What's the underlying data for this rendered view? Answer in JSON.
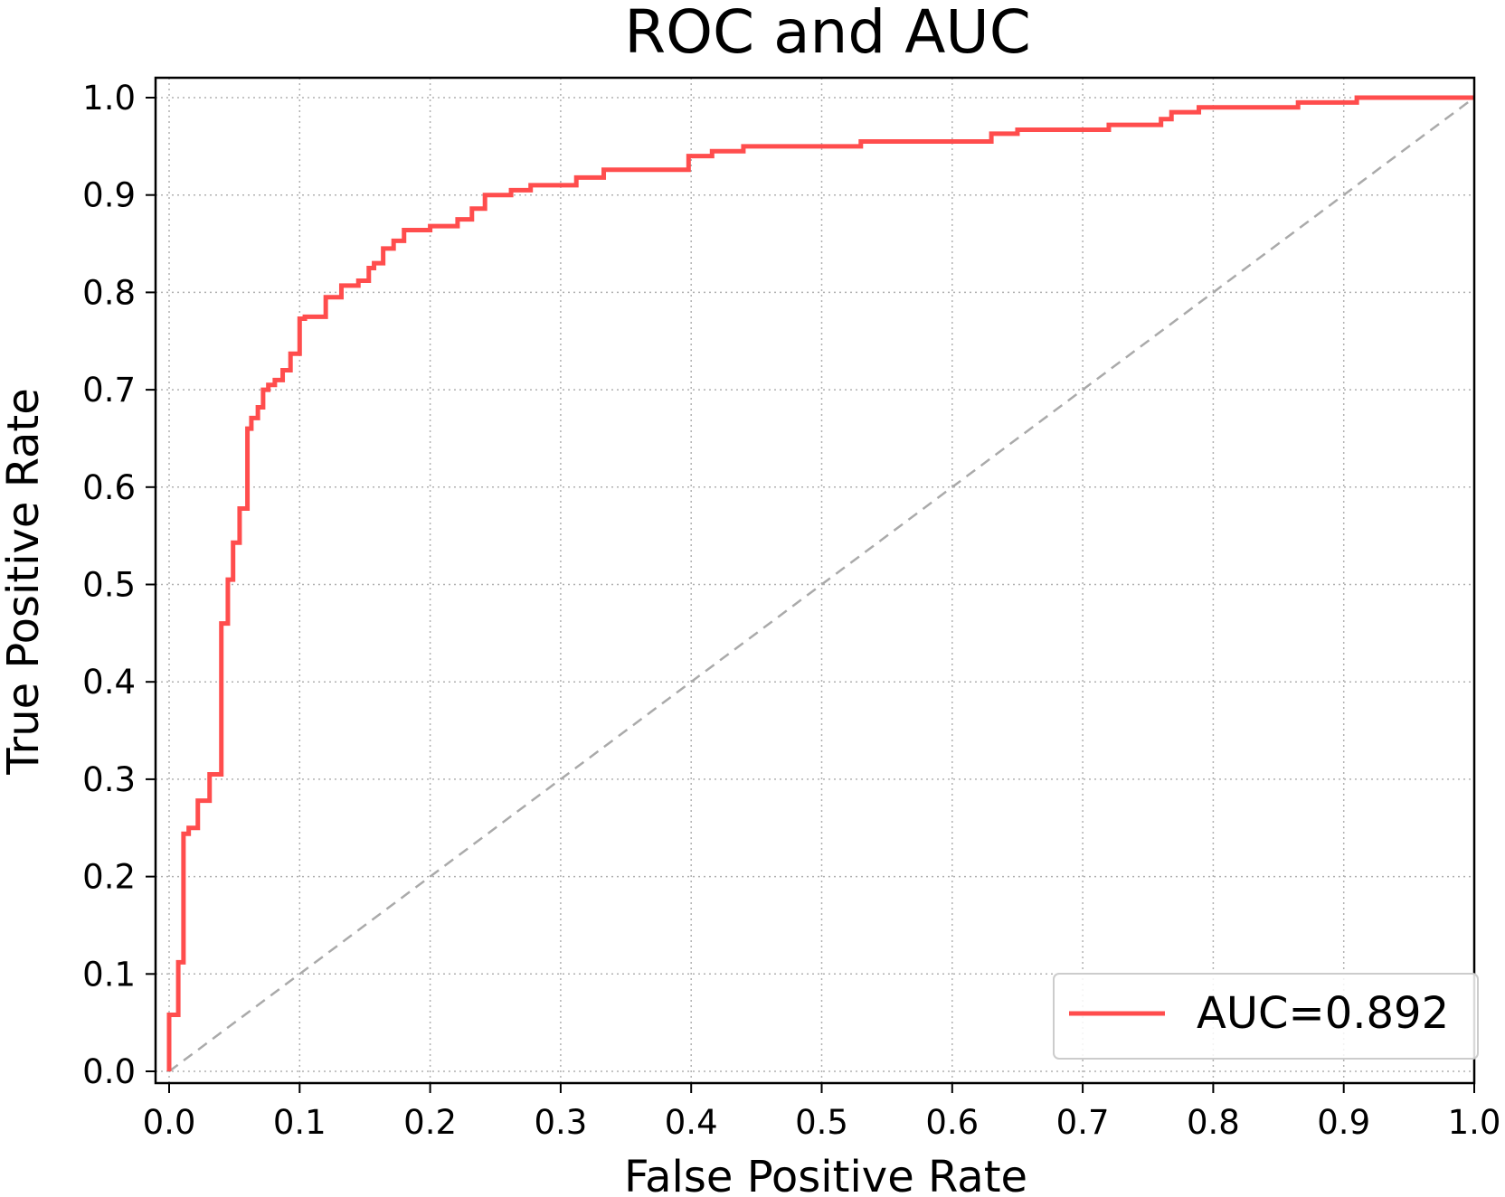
{
  "chart_data": {
    "type": "line",
    "title": "ROC and AUC",
    "xlabel": "False Positive Rate",
    "ylabel": "True Positive Rate",
    "xlim": [
      0.0,
      1.0
    ],
    "ylim": [
      0.0,
      1.0
    ],
    "xticks": [
      "0.0",
      "0.1",
      "0.2",
      "0.3",
      "0.4",
      "0.5",
      "0.6",
      "0.7",
      "0.8",
      "0.9",
      "1.0"
    ],
    "yticks": [
      "0.0",
      "0.1",
      "0.2",
      "0.3",
      "0.4",
      "0.5",
      "0.6",
      "0.7",
      "0.8",
      "0.9",
      "1.0"
    ],
    "grid": true,
    "legend_position": "lower-right",
    "series": [
      {
        "name": "AUC=0.892",
        "color": "#ff4d4d",
        "x": [
          0.0,
          0.0,
          0.007,
          0.007,
          0.011,
          0.011,
          0.015,
          0.015,
          0.022,
          0.022,
          0.031,
          0.031,
          0.04,
          0.04,
          0.045,
          0.045,
          0.049,
          0.049,
          0.054,
          0.054,
          0.06,
          0.06,
          0.063,
          0.063,
          0.068,
          0.068,
          0.072,
          0.072,
          0.076,
          0.076,
          0.081,
          0.081,
          0.087,
          0.087,
          0.093,
          0.093,
          0.1,
          0.1,
          0.104,
          0.104,
          0.12,
          0.12,
          0.132,
          0.132,
          0.145,
          0.145,
          0.153,
          0.153,
          0.157,
          0.157,
          0.164,
          0.164,
          0.172,
          0.172,
          0.18,
          0.18,
          0.2,
          0.2,
          0.221,
          0.221,
          0.232,
          0.232,
          0.242,
          0.242,
          0.262,
          0.262,
          0.277,
          0.277,
          0.312,
          0.312,
          0.333,
          0.333,
          0.398,
          0.398,
          0.416,
          0.416,
          0.44,
          0.44,
          0.53,
          0.53,
          0.63,
          0.63,
          0.65,
          0.65,
          0.72,
          0.72,
          0.76,
          0.76,
          0.768,
          0.768,
          0.789,
          0.789,
          0.865,
          0.865,
          0.91,
          0.91,
          1.0
        ],
        "y": [
          0.0,
          0.058,
          0.058,
          0.112,
          0.112,
          0.244,
          0.244,
          0.25,
          0.25,
          0.278,
          0.278,
          0.305,
          0.305,
          0.46,
          0.46,
          0.505,
          0.505,
          0.543,
          0.543,
          0.578,
          0.578,
          0.66,
          0.66,
          0.671,
          0.671,
          0.682,
          0.682,
          0.7,
          0.7,
          0.705,
          0.705,
          0.71,
          0.71,
          0.72,
          0.72,
          0.737,
          0.737,
          0.773,
          0.773,
          0.775,
          0.775,
          0.795,
          0.795,
          0.807,
          0.807,
          0.812,
          0.812,
          0.825,
          0.825,
          0.83,
          0.83,
          0.845,
          0.845,
          0.853,
          0.853,
          0.864,
          0.864,
          0.868,
          0.868,
          0.875,
          0.875,
          0.886,
          0.886,
          0.9,
          0.9,
          0.905,
          0.905,
          0.91,
          0.91,
          0.918,
          0.918,
          0.926,
          0.926,
          0.94,
          0.94,
          0.945,
          0.945,
          0.95,
          0.95,
          0.955,
          0.955,
          0.963,
          0.963,
          0.967,
          0.967,
          0.972,
          0.972,
          0.978,
          0.978,
          0.985,
          0.985,
          0.99,
          0.99,
          0.995,
          0.995,
          1.0,
          1.0
        ]
      },
      {
        "style": "dashed",
        "color": "#aaaaaa",
        "x": [
          0.0,
          1.0
        ],
        "y": [
          0.0,
          1.0
        ]
      }
    ]
  }
}
